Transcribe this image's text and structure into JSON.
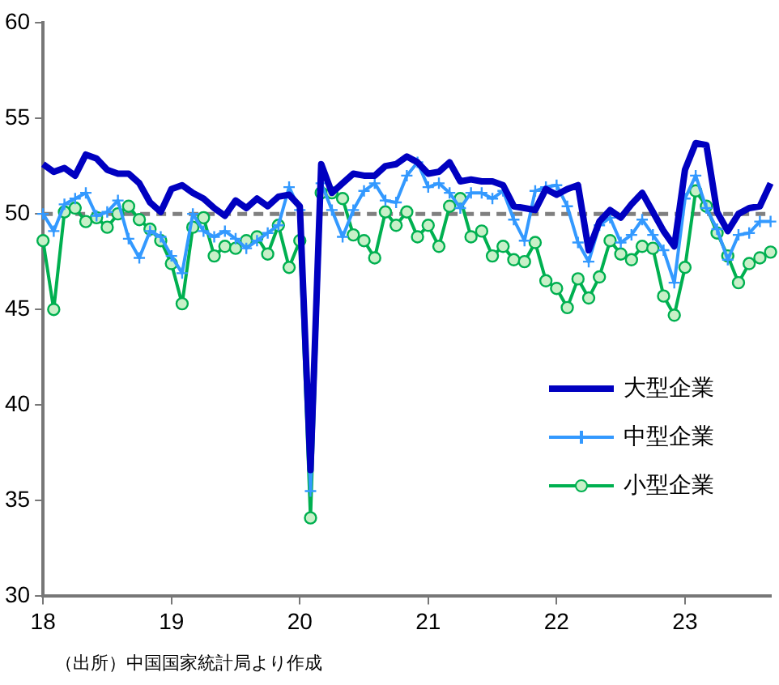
{
  "chart_data": {
    "type": "line",
    "categories": [
      "18",
      null,
      null,
      null,
      null,
      null,
      null,
      null,
      null,
      null,
      null,
      null,
      "19",
      null,
      null,
      null,
      null,
      null,
      null,
      null,
      null,
      null,
      null,
      null,
      "20",
      null,
      null,
      null,
      null,
      null,
      null,
      null,
      null,
      null,
      null,
      null,
      "21",
      null,
      null,
      null,
      null,
      null,
      null,
      null,
      null,
      null,
      null,
      null,
      "22",
      null,
      null,
      null,
      null,
      null,
      null,
      null,
      null,
      null,
      null,
      null,
      "23",
      null,
      null,
      null,
      null,
      null,
      null,
      null,
      null
    ],
    "series": [
      {
        "name": "大型企業",
        "color": "#0000c0",
        "marker": "none",
        "values": [
          52.6,
          52.2,
          52.4,
          52.0,
          53.1,
          52.9,
          52.3,
          52.1,
          52.1,
          51.6,
          50.6,
          50.1,
          51.3,
          51.5,
          51.1,
          50.8,
          50.3,
          49.9,
          50.7,
          50.3,
          50.8,
          50.4,
          50.9,
          51.0,
          50.4,
          36.6,
          52.6,
          51.1,
          51.6,
          52.1,
          52.0,
          52.0,
          52.5,
          52.6,
          53.0,
          52.7,
          52.1,
          52.2,
          52.7,
          51.7,
          51.8,
          51.7,
          51.7,
          51.5,
          50.4,
          50.3,
          50.2,
          51.3,
          51.0,
          51.3,
          51.5,
          48.1,
          49.6,
          50.2,
          49.8,
          50.5,
          51.1,
          50.1,
          49.1,
          48.3,
          52.3,
          53.7,
          53.6,
          50.1,
          49.1,
          50.0,
          50.3,
          50.4,
          51.6
        ]
      },
      {
        "name": "中型企業",
        "color": "#3399ff",
        "marker": "cross",
        "values": [
          50.0,
          49.1,
          50.5,
          50.8,
          51.1,
          49.9,
          50.1,
          50.7,
          48.7,
          47.7,
          49.1,
          48.8,
          47.8,
          46.9,
          50.0,
          49.1,
          48.8,
          49.1,
          48.7,
          48.2,
          48.6,
          49.0,
          49.4,
          51.4,
          50.2,
          35.5,
          51.6,
          50.2,
          48.8,
          50.2,
          51.2,
          51.6,
          50.7,
          50.6,
          52.0,
          52.7,
          51.4,
          51.6,
          51.1,
          50.3,
          51.1,
          51.1,
          50.8,
          51.2,
          49.7,
          48.6,
          51.2,
          51.4,
          51.5,
          50.4,
          48.5,
          47.5,
          49.4,
          49.8,
          48.5,
          48.9,
          49.7,
          48.9,
          48.1,
          46.4,
          50.8,
          52.0,
          50.3,
          49.2,
          47.6,
          48.9,
          49.0,
          49.6,
          49.6
        ]
      },
      {
        "name": "小型企業",
        "color": "#00b050",
        "marker": "circle",
        "values": [
          48.6,
          45.0,
          50.1,
          50.3,
          49.6,
          49.8,
          49.3,
          50.0,
          50.4,
          49.7,
          49.2,
          48.6,
          47.4,
          45.3,
          49.3,
          49.8,
          47.8,
          48.3,
          48.2,
          48.6,
          48.8,
          47.9,
          49.4,
          47.2,
          48.6,
          34.1,
          51.1,
          51.1,
          50.8,
          48.9,
          48.6,
          47.7,
          50.1,
          49.4,
          50.1,
          48.8,
          49.4,
          48.3,
          50.4,
          50.8,
          48.8,
          49.1,
          47.8,
          48.3,
          47.6,
          47.5,
          48.5,
          46.5,
          46.1,
          45.1,
          46.6,
          45.6,
          46.7,
          48.6,
          47.9,
          47.6,
          48.3,
          48.2,
          45.7,
          44.7,
          47.2,
          51.2,
          50.4,
          49.0,
          47.8,
          46.4,
          47.4,
          47.7,
          48.0
        ]
      }
    ],
    "ylim": [
      30,
      60
    ],
    "yticks": [
      30,
      35,
      40,
      45,
      50,
      55,
      60
    ],
    "grid": false,
    "legend": "right",
    "ref_lines": [
      {
        "axis": "y",
        "value": 50,
        "color": "#808080",
        "line_style": "dashed"
      }
    ],
    "annotations": [
      "（出所）中国国家統計局より作成"
    ]
  }
}
